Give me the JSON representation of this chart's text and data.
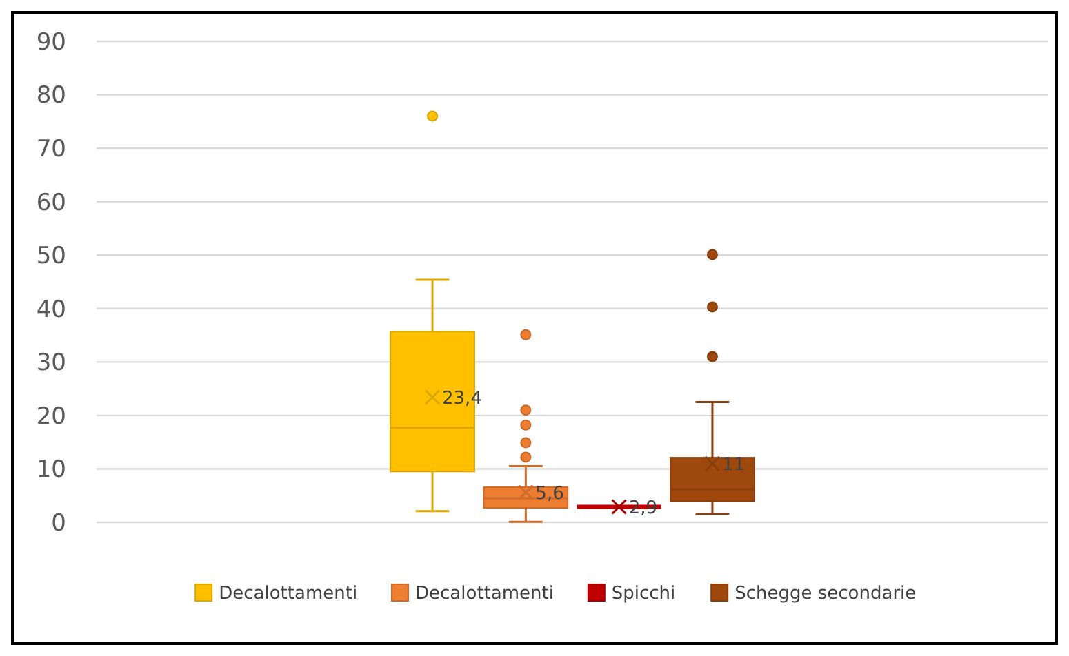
{
  "chart_data": {
    "type": "box",
    "categories": [
      null
    ],
    "ylim": [
      0,
      90
    ],
    "yticks": [
      0,
      10,
      20,
      30,
      40,
      50,
      60,
      70,
      80,
      90
    ],
    "grid": "y",
    "legend": "bottom",
    "marker": "circle",
    "series": [
      {
        "name": "Decalottamenti",
        "color": "#ffc000",
        "boxes": [
          {
            "low": 2.1,
            "q1": 9.5,
            "median": 17.7,
            "q3": 35.7,
            "high": 45.4,
            "mean": 23.4,
            "outliers": [
              76
            ]
          }
        ]
      },
      {
        "name": "Decalottamenti",
        "color": "#ed7d31",
        "boxes": [
          {
            "low": 0.1,
            "q1": 2.7,
            "median": 4.5,
            "q3": 6.6,
            "high": 10.5,
            "mean": 5.6,
            "outliers": [
              12.2,
              14.9,
              18.2,
              21,
              35.1
            ]
          }
        ]
      },
      {
        "name": "Spicchi",
        "color": "#c00000",
        "boxes": [
          {
            "low": 2.9,
            "q1": 2.9,
            "median": 2.9,
            "q3": 2.9,
            "high": 2.9,
            "mean": 2.9
          }
        ]
      },
      {
        "name": "Schegge secondarie",
        "color": "#9e480e",
        "boxes": [
          {
            "low": 1.6,
            "q1": 4,
            "median": 6.2,
            "q3": 12.1,
            "high": 22.5,
            "mean": 11,
            "outliers": [
              31,
              40.3,
              50.1
            ]
          }
        ]
      }
    ],
    "annotations": [
      "23,4",
      "5,6",
      "2,9",
      "11"
    ]
  }
}
